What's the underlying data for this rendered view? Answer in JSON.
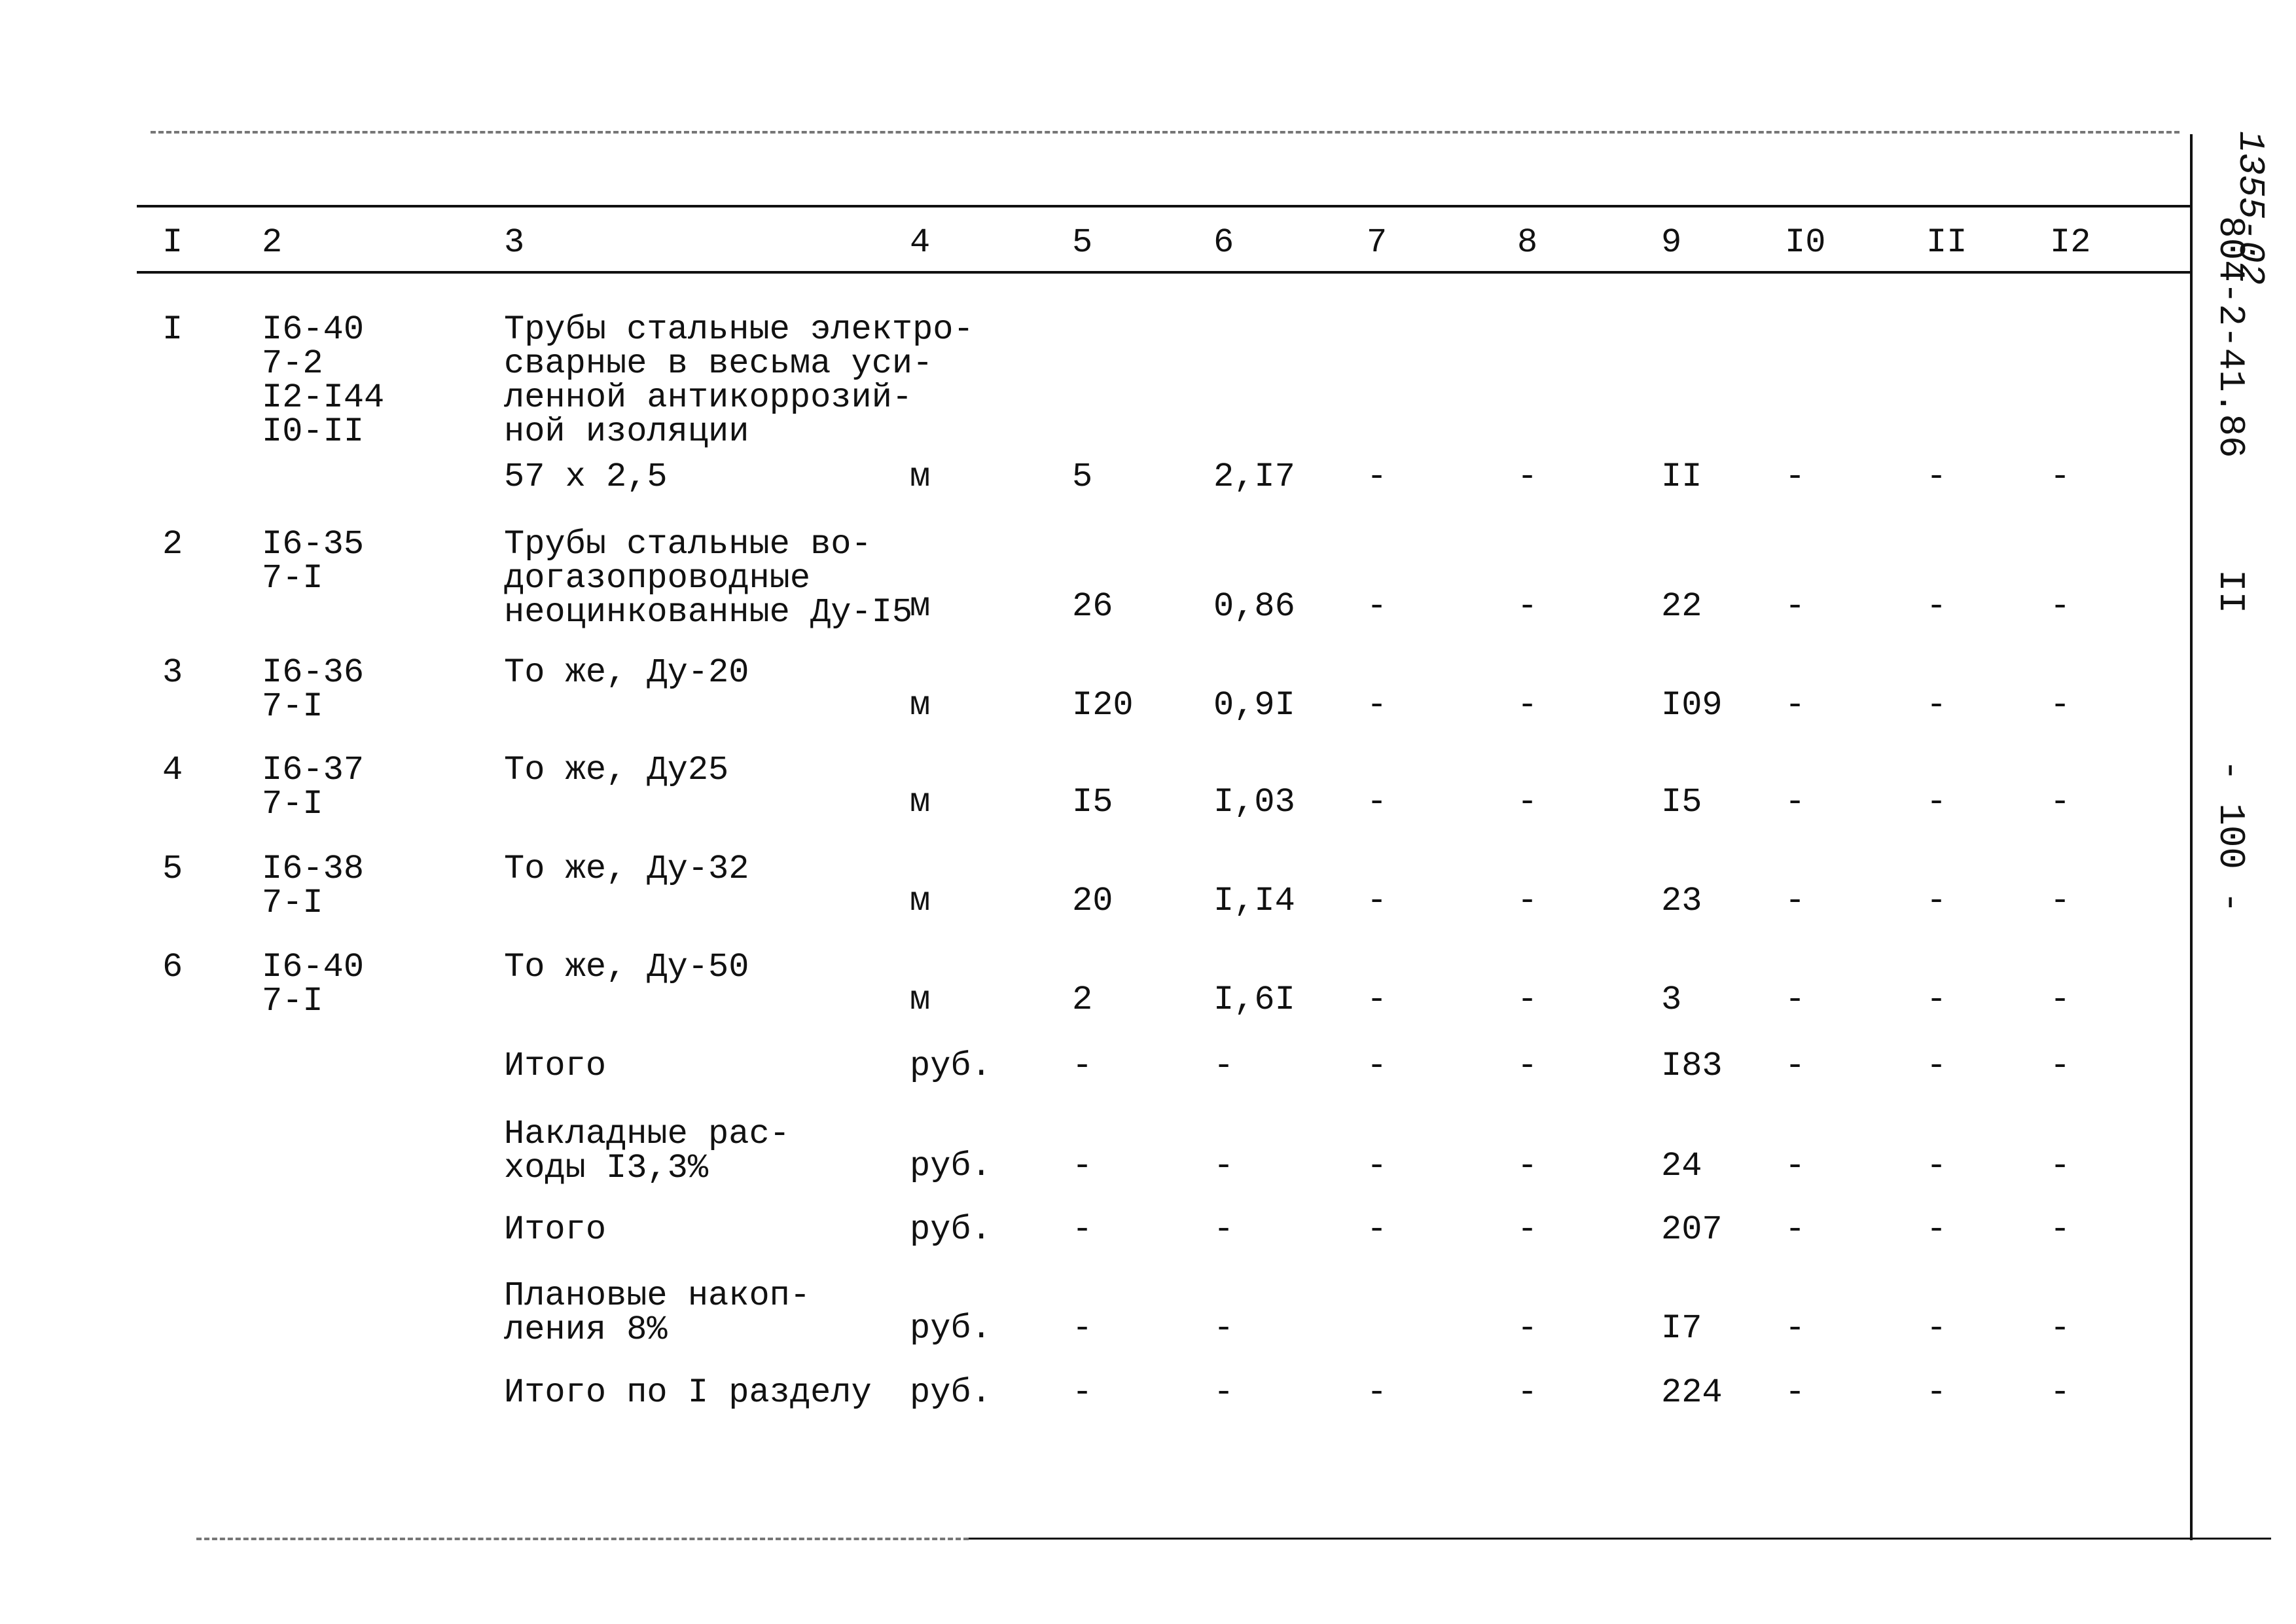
{
  "side_labels": {
    "doc_number": "804-2-41.86",
    "handwritten": "1355-02",
    "section": "II",
    "page": "- 100 -"
  },
  "header": [
    "I",
    "2",
    "3",
    "4",
    "5",
    "6",
    "7",
    "8",
    "9",
    "I0",
    "II",
    "I2"
  ],
  "rows": [
    {
      "num": "I",
      "code": [
        "I6-40",
        "7-2",
        "I2-I44",
        "I0-II"
      ],
      "desc": [
        "Трубы стальные электро-",
        "сварные в весьма уси-",
        "ленной антикоррозий-",
        "ной изоляции",
        "57 x 2,5"
      ],
      "unit": "м",
      "values": [
        "5",
        "2,I7",
        "-",
        "-",
        "II",
        "-",
        "-",
        "-"
      ]
    },
    {
      "num": "2",
      "code": [
        "I6-35",
        "7-I"
      ],
      "desc": [
        "Трубы стальные во-",
        "догазопроводные",
        "неоцинкованные Ду-I5"
      ],
      "unit": "м",
      "values": [
        "26",
        "0,86",
        "-",
        "-",
        "22",
        "-",
        "-",
        "-"
      ]
    },
    {
      "num": "3",
      "code": [
        "I6-36",
        "7-I"
      ],
      "desc": [
        "То же, Ду-20"
      ],
      "unit": "м",
      "values": [
        "I20",
        "0,9I",
        "-",
        "-",
        "I09",
        "-",
        "-",
        "-"
      ]
    },
    {
      "num": "4",
      "code": [
        "I6-37",
        "7-I"
      ],
      "desc": [
        "То же, Ду25"
      ],
      "unit": "м",
      "values": [
        "I5",
        "I,03",
        "-",
        "-",
        "I5",
        "-",
        "-",
        "-"
      ]
    },
    {
      "num": "5",
      "code": [
        "I6-38",
        "7-I"
      ],
      "desc": [
        "То же, Ду-32"
      ],
      "unit": "м",
      "values": [
        "20",
        "I,I4",
        "-",
        "-",
        "23",
        "-",
        "-",
        "-"
      ]
    },
    {
      "num": "6",
      "code": [
        "I6-40",
        "7-I"
      ],
      "desc": [
        "То же, Ду-50"
      ],
      "unit": "м",
      "values": [
        "2",
        "I,6I",
        "-",
        "-",
        "3",
        "-",
        "-",
        "-"
      ]
    },
    {
      "num": "",
      "code": [],
      "desc": [
        "Итого"
      ],
      "unit": "руб.",
      "values": [
        "-",
        "-",
        "-",
        "-",
        "I83",
        "-",
        "-",
        "-"
      ]
    },
    {
      "num": "",
      "code": [],
      "desc": [
        "Накладные рас-",
        "ходы I3,3%"
      ],
      "unit": "руб.",
      "values": [
        "-",
        "-",
        "-",
        "-",
        "24",
        "-",
        "-",
        "-"
      ]
    },
    {
      "num": "",
      "code": [],
      "desc": [
        "Итого"
      ],
      "unit": "руб.",
      "values": [
        "-",
        "-",
        "-",
        "-",
        "207",
        "-",
        "-",
        "-"
      ]
    },
    {
      "num": "",
      "code": [],
      "desc": [
        "Плановые накоп-",
        "ления 8%"
      ],
      "unit": "руб.",
      "values": [
        "-",
        "-",
        "",
        "-",
        "I7",
        "-",
        "-",
        "-"
      ]
    },
    {
      "num": "",
      "code": [],
      "desc": [
        "Итого по I разделу"
      ],
      "unit": "руб.",
      "values": [
        "-",
        "-",
        "-",
        "-",
        "224",
        "-",
        "-",
        "-"
      ]
    }
  ]
}
